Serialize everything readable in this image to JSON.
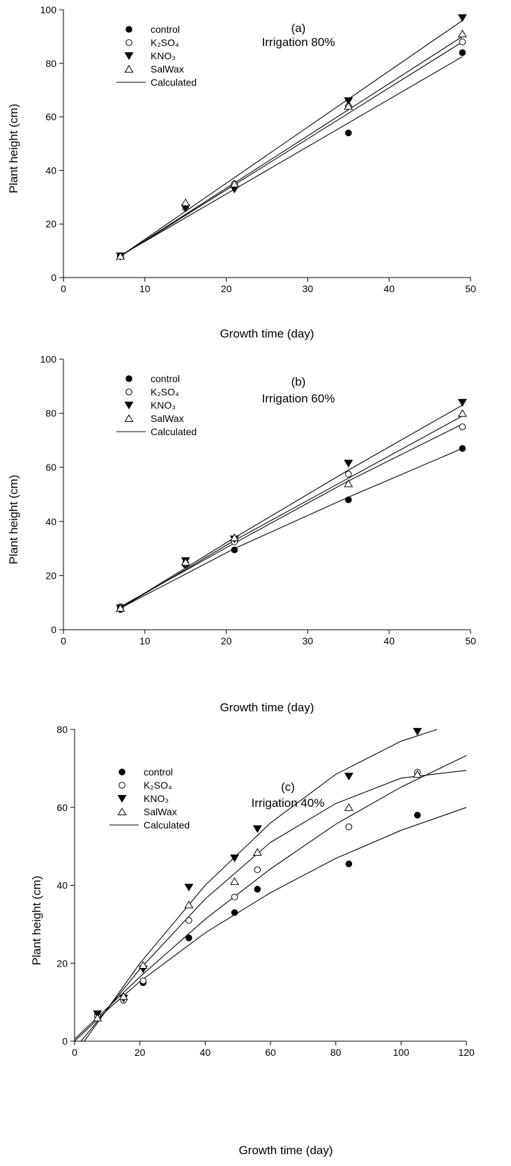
{
  "chart_data": [
    {
      "type": "scatter",
      "panel": "(a)",
      "annotation": "Irrigation 80%",
      "xlabel": "Growth time (day)",
      "ylabel": "Plant height (cm)",
      "xlim": [
        0,
        50
      ],
      "ylim": [
        0,
        100
      ],
      "xticks": [
        "0",
        "10",
        "20",
        "30",
        "40",
        "50"
      ],
      "yticks": [
        "0",
        "20",
        "40",
        "60",
        "80",
        "100"
      ],
      "grid": false,
      "legend_position": "top-left",
      "series": [
        {
          "name": "control",
          "marker": "filled-circle",
          "x": [
            7,
            15,
            21,
            35,
            49
          ],
          "y": [
            8,
            26,
            34,
            54,
            84
          ],
          "fit": [
            [
              7,
              8.2
            ],
            [
              49,
              82.5
            ]
          ]
        },
        {
          "name": "K₂SO₄",
          "marker": "open-circle",
          "x": [
            7,
            15,
            21,
            35,
            49
          ],
          "y": [
            8,
            26,
            35,
            64,
            88
          ],
          "fit": [
            [
              7,
              8
            ],
            [
              49,
              88
            ]
          ]
        },
        {
          "name": "KNO₃",
          "marker": "filled-triangle-down",
          "x": [
            7,
            15,
            21,
            35,
            49
          ],
          "y": [
            8,
            26,
            33,
            66,
            97
          ],
          "fit": [
            [
              7,
              8
            ],
            [
              49,
              96
            ]
          ]
        },
        {
          "name": "SalWax",
          "marker": "open-triangle-up",
          "x": [
            7,
            15,
            21,
            35,
            49
          ],
          "y": [
            8,
            28,
            35,
            64,
            91
          ],
          "fit": [
            [
              7,
              8
            ],
            [
              49,
              90
            ]
          ]
        },
        {
          "name": "Calculated",
          "marker": "line"
        }
      ]
    },
    {
      "type": "scatter",
      "panel": "(b)",
      "annotation": "Irrigation  60%",
      "xlabel": "Growth time (day)",
      "ylabel": "Plant height (cm)",
      "xlim": [
        0,
        50
      ],
      "ylim": [
        0,
        100
      ],
      "xticks": [
        "0",
        "10",
        "20",
        "30",
        "40",
        "50"
      ],
      "yticks": [
        "0",
        "20",
        "40",
        "60",
        "80",
        "100"
      ],
      "grid": false,
      "legend_position": "top-left",
      "series": [
        {
          "name": "control",
          "marker": "filled-circle",
          "x": [
            7,
            15,
            21,
            35,
            49
          ],
          "y": [
            7.5,
            24,
            29.5,
            48,
            67
          ],
          "fit": [
            [
              7,
              8
            ],
            [
              21,
              30
            ],
            [
              35,
              49
            ],
            [
              49,
              67
            ]
          ]
        },
        {
          "name": "K₂SO₄",
          "marker": "open-circle",
          "x": [
            7,
            15,
            21,
            35,
            49
          ],
          "y": [
            8.5,
            24.5,
            32.5,
            57.5,
            75
          ],
          "fit": [
            [
              7,
              8.5
            ],
            [
              21,
              32
            ],
            [
              35,
              55
            ],
            [
              49,
              76
            ]
          ]
        },
        {
          "name": "KNO₃",
          "marker": "filled-triangle-down",
          "x": [
            7,
            15,
            21,
            35,
            49
          ],
          "y": [
            8,
            25.5,
            33.5,
            61.5,
            84
          ],
          "fit": [
            [
              7,
              8
            ],
            [
              21,
              34
            ],
            [
              35,
              59
            ],
            [
              49,
              83
            ]
          ]
        },
        {
          "name": "SalWax",
          "marker": "open-triangle-up",
          "x": [
            7,
            15,
            21,
            35,
            49
          ],
          "y": [
            8,
            25,
            34,
            54,
            80
          ],
          "fit": [
            [
              7,
              8
            ],
            [
              21,
              33
            ],
            [
              35,
              56
            ],
            [
              49,
              79
            ]
          ]
        },
        {
          "name": "Calculated",
          "marker": "line"
        }
      ]
    },
    {
      "type": "scatter",
      "panel": "(c)",
      "annotation": "Irrigation 40%",
      "xlabel": "Growth time (day)",
      "ylabel": "Plant height (cm)",
      "xlim": [
        0,
        120
      ],
      "ylim": [
        0,
        80
      ],
      "xticks": [
        "0",
        "20",
        "40",
        "60",
        "80",
        "100",
        "120"
      ],
      "yticks": [
        "0",
        "20",
        "40",
        "60",
        "80"
      ],
      "grid": false,
      "legend_position": "top-left",
      "series": [
        {
          "name": "control",
          "marker": "filled-circle",
          "x": [
            7,
            15,
            21,
            35,
            49,
            56,
            84,
            105
          ],
          "y": [
            6.5,
            11,
            15,
            26.5,
            33,
            39,
            45.5,
            58
          ],
          "fit": [
            [
              0,
              0
            ],
            [
              10,
              8
            ],
            [
              20,
              15.3
            ],
            [
              40,
              27.8
            ],
            [
              60,
              38.1
            ],
            [
              80,
              46.9
            ],
            [
              100,
              54.1
            ],
            [
              120,
              60
            ]
          ]
        },
        {
          "name": "K₂SO₄",
          "marker": "open-circle",
          "x": [
            7,
            15,
            21,
            35,
            49,
            56,
            84,
            105
          ],
          "y": [
            6.5,
            10.5,
            15.5,
            31,
            37,
            44,
            55,
            69
          ],
          "fit": [
            [
              0,
              0.5
            ],
            [
              20,
              16.5
            ],
            [
              40,
              31.3
            ],
            [
              60,
              44.2
            ],
            [
              80,
              55.7
            ],
            [
              100,
              65.2
            ],
            [
              120,
              73.3
            ]
          ]
        },
        {
          "name": "KNO₃",
          "marker": "filled-triangle-down",
          "x": [
            7,
            15,
            21,
            35,
            49,
            56,
            84,
            105
          ],
          "y": [
            7,
            11,
            18.5,
            39.5,
            47,
            54.5,
            68,
            79.5
          ],
          "fit": [
            [
              3,
              0
            ],
            [
              20,
              20
            ],
            [
              40,
              40
            ],
            [
              60,
              56
            ],
            [
              80,
              68.5
            ],
            [
              100,
              77
            ],
            [
              111,
              80
            ]
          ]
        },
        {
          "name": "SalWax",
          "marker": "open-triangle-up",
          "x": [
            7,
            15,
            21,
            35,
            49,
            56,
            84,
            105
          ],
          "y": [
            6,
            11.5,
            19.5,
            35,
            41,
            48.5,
            60,
            68.5
          ],
          "fit": [
            [
              2,
              0
            ],
            [
              20,
              18.5
            ],
            [
              40,
              36.5
            ],
            [
              60,
              51
            ],
            [
              80,
              61
            ],
            [
              100,
              67.5
            ],
            [
              120,
              69.5
            ]
          ]
        },
        {
          "name": "Calculated",
          "marker": "line"
        }
      ]
    }
  ]
}
